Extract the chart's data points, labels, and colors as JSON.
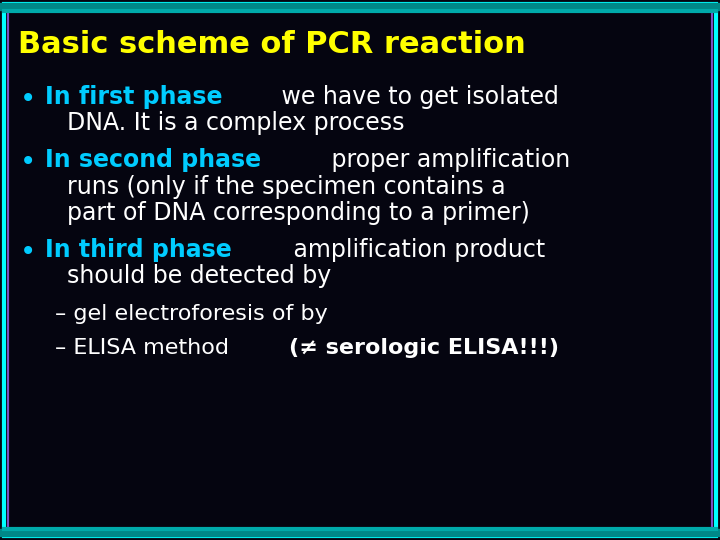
{
  "title": "Basic scheme of PCR reaction",
  "title_color": "#FFFF00",
  "background_color": "#050510",
  "border_color_outer": "#00FFFF",
  "border_color_inner": "#7B4FBF",
  "bullet_color": "#00CCFF",
  "phase_color": "#00CCFF",
  "text_color": "#FFFFFF",
  "title_fontsize": 22,
  "body_fontsize": 17,
  "sub_fontsize": 16,
  "bullets": [
    {
      "phase": "In first phase",
      "rest_line1": " we have to get isolated",
      "rest_line2": "DNA. It is a complex process"
    },
    {
      "phase": "In second phase",
      "rest_line1": " proper amplification",
      "rest_line2": "runs (only if the specimen contains a",
      "rest_line3": "part of DNA corresponding to a primer)"
    },
    {
      "phase": "In third phase",
      "rest_line1": " amplification product",
      "rest_line2": "should be detected by"
    }
  ],
  "sub_bullets": [
    "– gel electroforesis of by",
    "– ELISA method "
  ],
  "sub_bold": "(≠ serologic ELISA!!!)"
}
